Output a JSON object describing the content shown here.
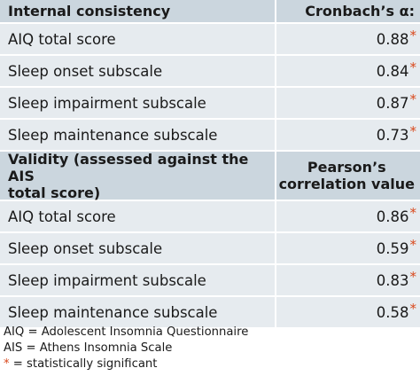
{
  "table": {
    "section1": {
      "header_label": "Internal consistency",
      "header_value": "Cronbach’s α:",
      "rows": [
        {
          "label": "AIQ total score",
          "value": "0.88",
          "mark": "*"
        },
        {
          "label": "Sleep onset subscale",
          "value": "0.84",
          "mark": "*"
        },
        {
          "label": "Sleep impairment subscale",
          "value": "0.87",
          "mark": "*"
        },
        {
          "label": "Sleep maintenance subscale",
          "value": "0.73",
          "mark": "*"
        }
      ]
    },
    "section2": {
      "header_label_line1": "Validity (assessed against the AIS",
      "header_label_line2": "total score)",
      "header_value_line1": "Pearson’s",
      "header_value_line2": "correlation value",
      "rows": [
        {
          "label": "AIQ total score",
          "value": "0.86",
          "mark": "*"
        },
        {
          "label": "Sleep onset subscale",
          "value": "0.59",
          "mark": "*"
        },
        {
          "label": "Sleep impairment subscale",
          "value": "0.83",
          "mark": "*"
        },
        {
          "label": "Sleep maintenance subscale",
          "value": "0.58",
          "mark": "*"
        }
      ]
    }
  },
  "notes": {
    "aiq": "AIQ = Adolescent Insomnia Questionnaire",
    "ais": "AIS = Athens Insomnia Scale",
    "star_symbol": "*",
    "star_text": " = statistically significant"
  },
  "colors": {
    "header_bg": "#cbd6de",
    "row_bg": "#e6ebef",
    "significance_mark": "#d9481c"
  }
}
